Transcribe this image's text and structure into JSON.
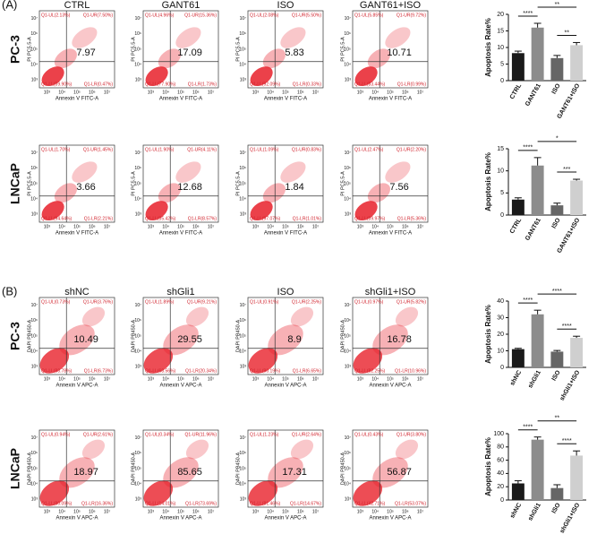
{
  "figure": {
    "panels": [
      {
        "label": "(A)",
        "x_label": "Annexin V FITC-A",
        "y_label": "PI PC5.5-A",
        "ticks": [
          "10³",
          "10⁴",
          "10⁵",
          "10⁶",
          "10⁷"
        ],
        "conditions": [
          "CTRL",
          "GANT61",
          "ISO",
          "GANT61+ISO"
        ],
        "rows": [
          {
            "cell": "PC-3",
            "plots": [
              {
                "quadrants": [
                  "Q1-UL(2.13%)",
                  "Q1-UR(7.50%)",
                  "Q1-LL(89.90%)",
                  "Q1-LR(0.47%)"
                ],
                "value": "7.97"
              },
              {
                "quadrants": [
                  "Q1-UL(4.96%)",
                  "Q1-UR(15.36%)",
                  "Q1-LL(77.90%)",
                  "Q1-LR(1.73%)"
                ],
                "value": "17.09"
              },
              {
                "quadrants": [
                  "Q1-UL(2.08%)",
                  "Q1-UR(5.50%)",
                  "Q1-LL(92.09%)",
                  "Q1-LR(0.33%)"
                ],
                "value": "5.83"
              },
              {
                "quadrants": [
                  "Q1-UL(5.85%)",
                  "Q1-UR(9.72%)",
                  "Q1-LL(83.44%)",
                  "Q1-LR(0.99%)"
                ],
                "value": "10.71"
              }
            ]
          },
          {
            "cell": "LNCaP",
            "plots": [
              {
                "quadrants": [
                  "Q1-UL(1.70%)",
                  "Q1-UR(1.45%)",
                  "Q1-LL(94.64%)",
                  "Q1-LR(2.21%)"
                ],
                "value": "3.66"
              },
              {
                "quadrants": [
                  "Q1-UL(1.90%)",
                  "Q1-UR(4.11%)",
                  "Q1-LL(85.42%)",
                  "Q1-LR(8.57%)"
                ],
                "value": "12.68"
              },
              {
                "quadrants": [
                  "Q1-UL(1.09%)",
                  "Q1-UR(0.83%)",
                  "Q1-LL(97.07%)",
                  "Q1-LR(1.01%)"
                ],
                "value": "1.84"
              },
              {
                "quadrants": [
                  "Q1-UL(2.47%)",
                  "Q1-UR(2.20%)",
                  "Q1-LL(89.97%)",
                  "Q1-LR(5.36%)"
                ],
                "value": "7.56"
              }
            ]
          }
        ]
      },
      {
        "label": "(B)",
        "x_label": "Annexin V APC-A",
        "y_label": "DAPI PB450-A",
        "ticks": [
          "10³",
          "10⁴",
          "10⁵",
          "10⁶",
          "10⁷"
        ],
        "conditions": [
          "shNC",
          "shGli1",
          "ISO",
          "shGli1+ISO"
        ],
        "rows": [
          {
            "cell": "PC-3",
            "plots": [
              {
                "quadrants": [
                  "Q1-UL(0.73%)",
                  "Q1-UR(3.76%)",
                  "Q1-LL(88.78%)",
                  "Q1-LR(6.73%)"
                ],
                "value": "10.49"
              },
              {
                "quadrants": [
                  "Q1-UL(1.89%)",
                  "Q1-UR(9.21%)",
                  "Q1-LL(68.56%)",
                  "Q1-LR(20.34%)"
                ],
                "value": "29.55"
              },
              {
                "quadrants": [
                  "Q1-UL(0.91%)",
                  "Q1-UR(2.25%)",
                  "Q1-LL(90.19%)",
                  "Q1-LR(6.65%)"
                ],
                "value": "8.9"
              },
              {
                "quadrants": [
                  "Q1-UL(0.97%)",
                  "Q1-UR(5.82%)",
                  "Q1-LL(82.25%)",
                  "Q1-LR(10.96%)"
                ],
                "value": "16.78"
              }
            ]
          },
          {
            "cell": "LNCaP",
            "plots": [
              {
                "quadrants": [
                  "Q1-UL(0.94%)",
                  "Q1-UR(2.61%)",
                  "Q1-LL(80.09%)",
                  "Q1-LR(16.36%)"
                ],
                "value": "18.97"
              },
              {
                "quadrants": [
                  "Q1-UL(0.34%)",
                  "Q1-UR(11.96%)",
                  "Q1-LL(14.01%)",
                  "Q1-LR(73.69%)"
                ],
                "value": "85.65"
              },
              {
                "quadrants": [
                  "Q1-UL(1.23%)",
                  "Q1-UR(2.64%)",
                  "Q1-LL(81.46%)",
                  "Q1-LR(14.67%)"
                ],
                "value": "17.31"
              },
              {
                "quadrants": [
                  "Q1-UL(0.43%)",
                  "Q1-UR(3.80%)",
                  "Q1-LL(42.71%)",
                  "Q1-LR(53.07%)"
                ],
                "value": "56.87"
              }
            ]
          }
        ]
      }
    ]
  },
  "chart_data": [
    {
      "type": "bar",
      "y_label": "Apoptosis Rate%",
      "categories": [
        "CTRL",
        "GANT61",
        "ISO",
        "GANT61+ISO"
      ],
      "values": [
        8.3,
        16,
        6.8,
        10.7
      ],
      "errors": [
        0.6,
        1.3,
        0.8,
        0.8
      ],
      "colors": [
        "#1a1a1a",
        "#8c8c8c",
        "#666666",
        "#cfcfcf"
      ],
      "ylim": [
        0,
        20
      ],
      "yticks": [
        0,
        5,
        10,
        15,
        20
      ],
      "significance": [
        {
          "from": "CTRL",
          "to": "GANT61",
          "label": "****"
        },
        {
          "from": "ISO",
          "to": "GANT61+ISO",
          "label": "**"
        },
        {
          "from": "GANT61",
          "to": "GANT61+ISO",
          "label": "**"
        }
      ]
    },
    {
      "type": "bar",
      "y_label": "Apoptosis Rate%",
      "categories": [
        "CTRL",
        "GANT61",
        "ISO",
        "GANT61+ISO"
      ],
      "values": [
        3.5,
        11.2,
        2.2,
        7.8
      ],
      "errors": [
        0.4,
        1.8,
        0.5,
        0.3
      ],
      "colors": [
        "#1a1a1a",
        "#8c8c8c",
        "#666666",
        "#cfcfcf"
      ],
      "ylim": [
        0,
        15
      ],
      "yticks": [
        0,
        5,
        10,
        15
      ],
      "significance": [
        {
          "from": "CTRL",
          "to": "GANT61",
          "label": "****"
        },
        {
          "from": "ISO",
          "to": "GANT61+ISO",
          "label": "***"
        },
        {
          "from": "GANT61",
          "to": "GANT61+ISO",
          "label": "*"
        }
      ]
    },
    {
      "type": "bar",
      "y_label": "Apoptosis Rate%",
      "categories": [
        "shNC",
        "shGli1",
        "ISO",
        "shGli1+ISO"
      ],
      "values": [
        11,
        32,
        9.5,
        17.8
      ],
      "errors": [
        0.5,
        2.5,
        0.7,
        1
      ],
      "colors": [
        "#1a1a1a",
        "#8c8c8c",
        "#666666",
        "#cfcfcf"
      ],
      "ylim": [
        0,
        40
      ],
      "yticks": [
        0,
        10,
        20,
        30,
        40
      ],
      "significance": [
        {
          "from": "shNC",
          "to": "shGli1",
          "label": "****"
        },
        {
          "from": "ISO",
          "to": "shGli1+ISO",
          "label": "****"
        },
        {
          "from": "shGli1",
          "to": "shGli1+ISO",
          "label": "****"
        }
      ]
    },
    {
      "type": "bar",
      "y_label": "Apoptosis Rate%",
      "categories": [
        "shNC",
        "shGli1",
        "ISO",
        "shGli1+ISO"
      ],
      "values": [
        25,
        91,
        18,
        67
      ],
      "errors": [
        4,
        4,
        5,
        7
      ],
      "colors": [
        "#1a1a1a",
        "#8c8c8c",
        "#666666",
        "#cfcfcf"
      ],
      "ylim": [
        0,
        100
      ],
      "yticks": [
        0,
        20,
        40,
        60,
        80,
        100
      ],
      "significance": [
        {
          "from": "shNC",
          "to": "shGli1",
          "label": "****"
        },
        {
          "from": "ISO",
          "to": "shGli1+ISO",
          "label": "****"
        },
        {
          "from": "shGli1",
          "to": "shGli1+ISO",
          "label": "**"
        }
      ]
    }
  ]
}
